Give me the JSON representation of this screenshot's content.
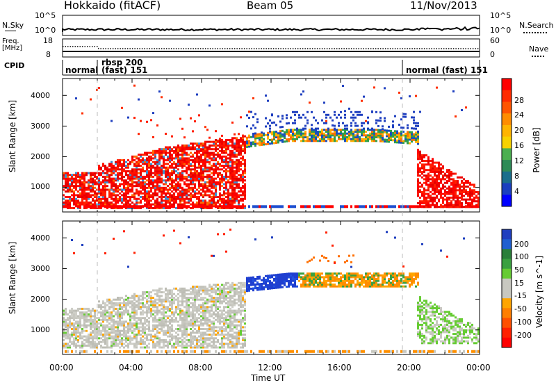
{
  "header": {
    "station": "Hokkaido (fitACF)",
    "beam": "Beam 05",
    "date": "11/Nov/2013"
  },
  "strip_labels": {
    "nsky": "N.Sky",
    "nsearch": "N.Search",
    "freq_line1": "Freq.",
    "freq_line2": "[MHz]",
    "nave": "Nave",
    "cpid": "CPID",
    "nsky_top": "10^5",
    "nsky_bottom": "10^0",
    "nsearch_top": "10^5",
    "nsearch_bottom": "10^0",
    "freq_top": "18",
    "freq_bottom": "8",
    "nave_top": "60",
    "nave_bottom": "0"
  },
  "cpid_segments": [
    {
      "label": "normal"
    },
    {
      "label": "rbsp 200"
    },
    {
      "label": "(fast) 151"
    },
    {
      "label": "normal (fast) 151"
    }
  ],
  "chart_data": [
    {
      "type": "heatmap",
      "parameter": "Power",
      "ylabel": "Slant Range [km]",
      "xlabel": "",
      "colorbar_label": "Power [dB]",
      "colorbar_ticks": [
        "28",
        "24",
        "20",
        "16",
        "12",
        "8",
        "4"
      ],
      "colorbar_colors": [
        "#ff0000",
        "#ff2b00",
        "#ff5500",
        "#ff8c00",
        "#ffb400",
        "#f8d200",
        "#4caf50",
        "#2e8b57",
        "#1a6e8c",
        "#1a3fbf",
        "#0000ff"
      ],
      "yticks": [
        "1000",
        "2000",
        "3000",
        "4000"
      ],
      "ylim": [
        200,
        4550
      ],
      "xlim": [
        "00:00",
        "24:00"
      ]
    },
    {
      "type": "heatmap",
      "parameter": "Velocity",
      "ylabel": "Slant Range [km]",
      "xlabel": "Time UT",
      "colorbar_label": "Velocity [m s^-1]",
      "colorbar_ticks": [
        "200",
        "100",
        "50",
        "15",
        "-15",
        "-50",
        "-100",
        "-200"
      ],
      "colorbar_colors": [
        "#1f3fbf",
        "#1f5fd0",
        "#2a7f3a",
        "#3aa040",
        "#66cc33",
        "#c8c8c0",
        "#c8c8c0",
        "#ffa500",
        "#ff7f00",
        "#ff5000",
        "#ff2000",
        "#ff0000"
      ],
      "yticks": [
        "1000",
        "2000",
        "3000",
        "4000"
      ],
      "xticks": [
        "00:00",
        "04:00",
        "08:00",
        "12:00",
        "16:00",
        "20:00",
        "00:00"
      ],
      "ylim": [
        200,
        4550
      ],
      "xlim": [
        "00:00",
        "24:00"
      ]
    }
  ]
}
